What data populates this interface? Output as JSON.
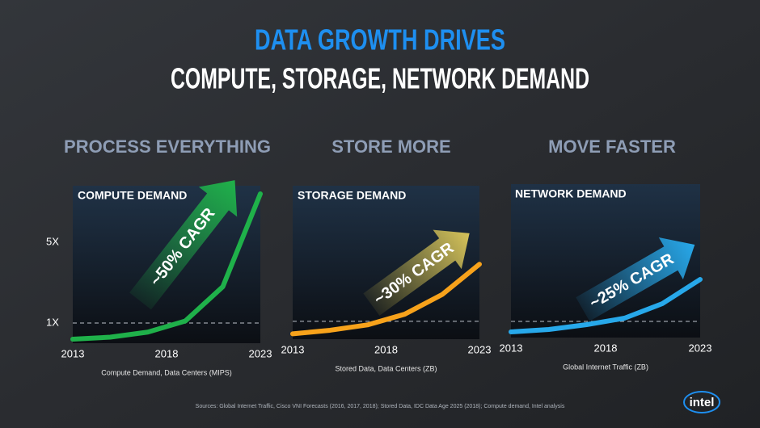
{
  "title_line1": "DATA GROWTH DRIVES",
  "title_line2": "COMPUTE, STORAGE, NETWORK DEMAND",
  "chart_data": [
    {
      "type": "line",
      "heading": "PROCESS EVERYTHING",
      "title": "COMPUTE DEMAND",
      "annotation": "~50% CAGR",
      "x_label": "Compute Demand, Data Centers (MIPS)",
      "x": [
        2013,
        2015,
        2017,
        2019,
        2021,
        2023
      ],
      "values": [
        0.2,
        0.3,
        0.55,
        1.1,
        2.8,
        7.4
      ],
      "color": "#1fb14a",
      "xlim": [
        2013,
        2023
      ],
      "xticks": [
        2013,
        2018,
        2023
      ],
      "ylim": [
        0,
        7.8
      ],
      "yticks": [
        {
          "value": 1,
          "label": "1X"
        },
        {
          "value": 5,
          "label": "5X"
        }
      ],
      "reference_line": 1
    },
    {
      "type": "line",
      "heading": "STORE MORE",
      "title": "STORAGE DEMAND",
      "annotation": "~30% CAGR",
      "x_label": "Stored Data, Data Centers (ZB)",
      "x": [
        2013,
        2015,
        2017,
        2019,
        2021,
        2023
      ],
      "values": [
        0.3,
        0.5,
        0.8,
        1.4,
        2.5,
        4.2
      ],
      "color": "#f7a21b",
      "xlim": [
        2013,
        2023
      ],
      "xticks": [
        2013,
        2018,
        2023
      ],
      "ylim": [
        0,
        8.6
      ],
      "reference_line": 1
    },
    {
      "type": "line",
      "heading": "MOVE FASTER",
      "title": "NETWORK DEMAND",
      "annotation": "~25% CAGR",
      "x_label": "Global Internet Traffic (ZB)",
      "x": [
        2013,
        2015,
        2017,
        2019,
        2021,
        2023
      ],
      "values": [
        0.35,
        0.5,
        0.8,
        1.2,
        2.1,
        3.6
      ],
      "color": "#27a8ea",
      "xlim": [
        2013,
        2023
      ],
      "xticks": [
        2013,
        2018,
        2023
      ],
      "ylim": [
        0,
        9.5
      ],
      "reference_line": 1
    }
  ],
  "source": "Sources: Global Internet Traffic, Cisco VNI Forecasts (2016, 2017, 2018); Stored Data, IDC Data Age 2025 (2018); Compute demand, Intel analysis",
  "logo": "intel"
}
